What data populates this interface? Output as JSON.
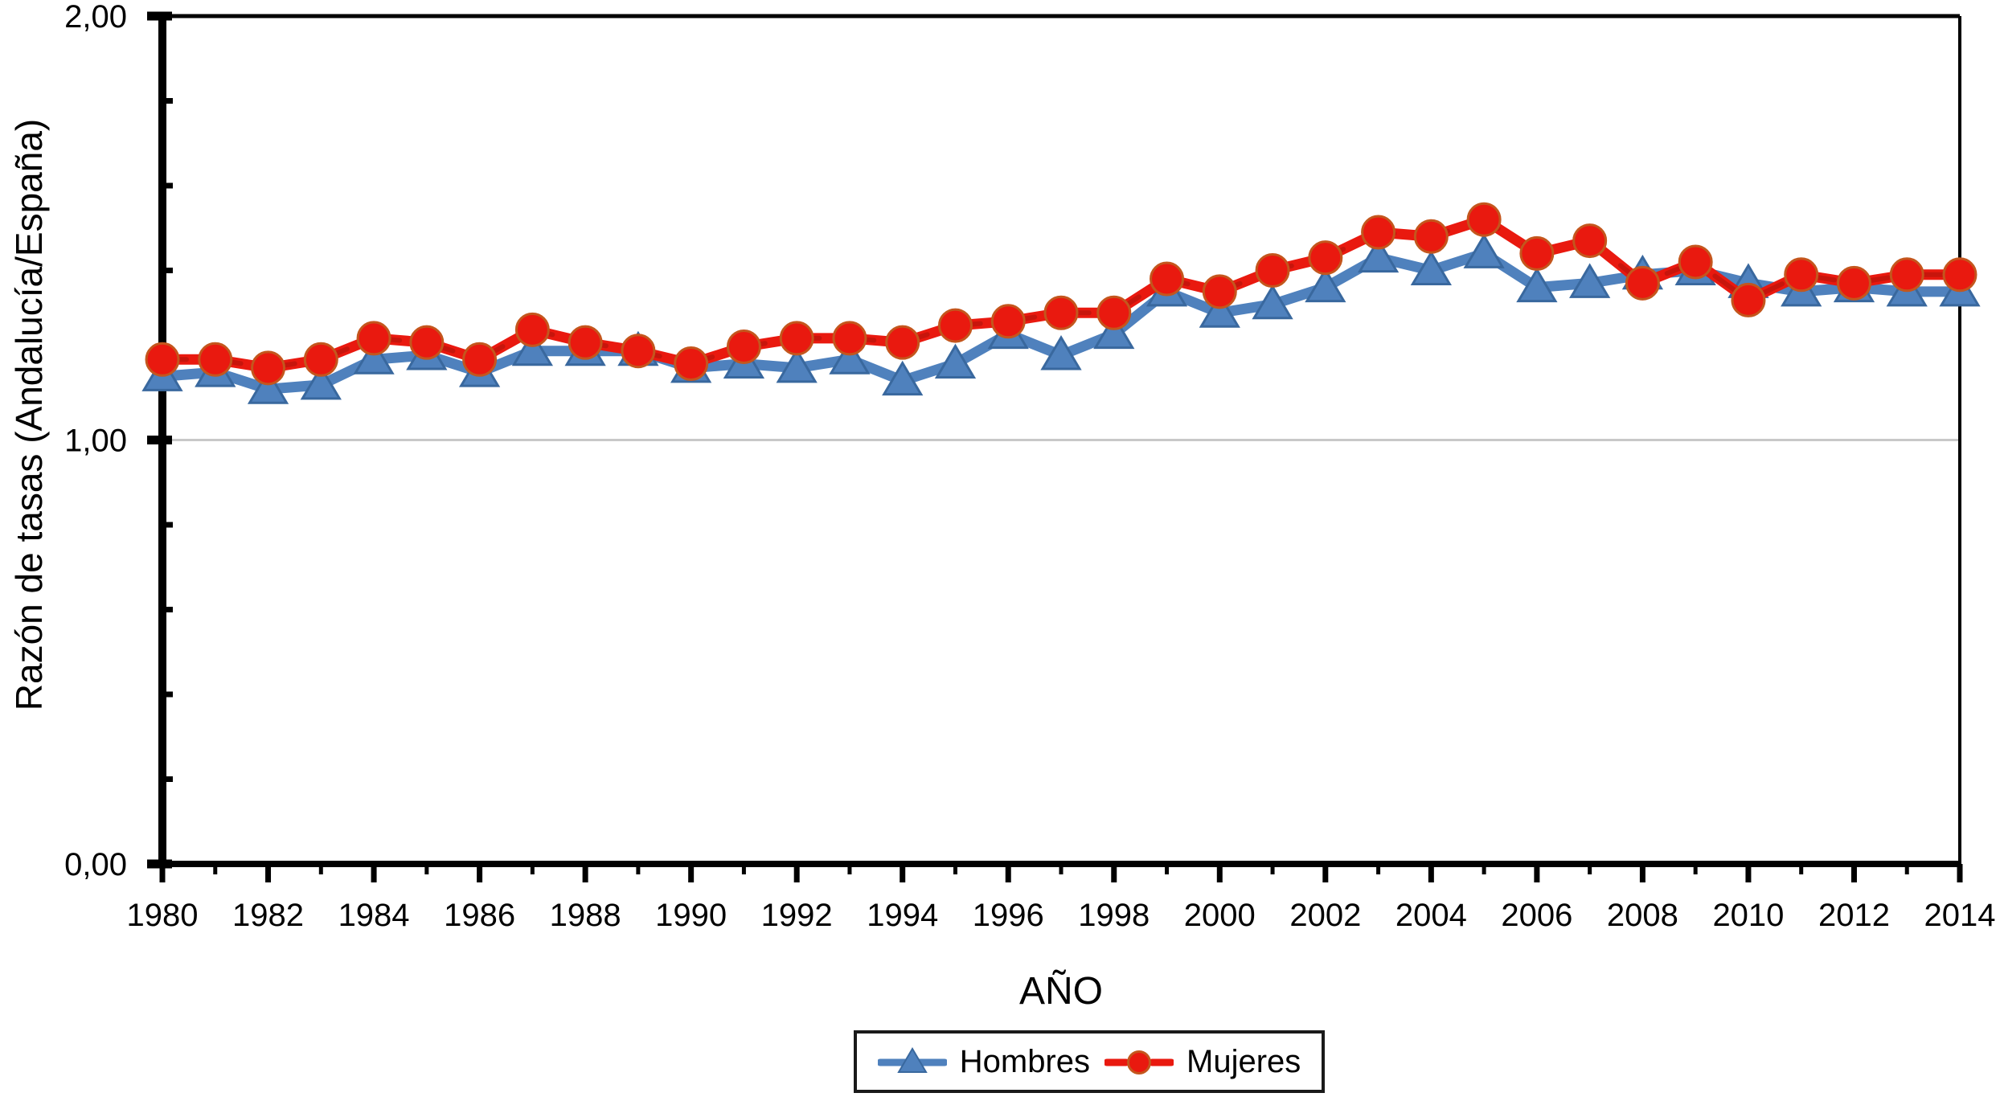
{
  "figure": {
    "y_axis_title": "Razón de tasas (Andalucía/España)",
    "x_axis_title": "AÑO",
    "background_color": "#ffffff",
    "axis_color": "#000000",
    "gridline_color": "#c8c8c8"
  },
  "legend": {
    "position": "bottom-center",
    "items": [
      {
        "label": "Hombres",
        "marker": "triangle",
        "color": "#4f81bd"
      },
      {
        "label": "Mujeres",
        "marker": "circle",
        "color": "#e9190f"
      }
    ]
  },
  "chart_data": {
    "type": "line",
    "xlabel": "AÑO",
    "ylabel": "Razón de tasas (Andalucía/España)",
    "ylim": [
      0,
      2
    ],
    "y_major_ticks": [
      0,
      1,
      2
    ],
    "y_tick_labels": [
      "0,00",
      "1,00",
      "2,00"
    ],
    "y_minor_step": 0.2,
    "gridlines": {
      "y": [
        1.0
      ]
    },
    "x_labeled_ticks": [
      1980,
      1982,
      1984,
      1986,
      1988,
      1990,
      1992,
      1994,
      1996,
      1998,
      2000,
      2002,
      2004,
      2006,
      2008,
      2010,
      2012,
      2014
    ],
    "x": [
      1980,
      1981,
      1982,
      1983,
      1984,
      1985,
      1986,
      1987,
      1988,
      1989,
      1990,
      1991,
      1992,
      1993,
      1994,
      1995,
      1996,
      1997,
      1998,
      1999,
      2000,
      2001,
      2002,
      2003,
      2004,
      2005,
      2006,
      2007,
      2008,
      2009,
      2010,
      2011,
      2012,
      2013,
      2014
    ],
    "series": [
      {
        "name": "Hombres",
        "marker": "triangle",
        "color": "#4f81bd",
        "marker_border": "#39689e",
        "line_style": "solid",
        "values": [
          1.15,
          1.16,
          1.12,
          1.13,
          1.19,
          1.2,
          1.16,
          1.21,
          1.21,
          1.21,
          1.17,
          1.18,
          1.17,
          1.19,
          1.14,
          1.18,
          1.25,
          1.2,
          1.25,
          1.35,
          1.3,
          1.32,
          1.36,
          1.43,
          1.4,
          1.44,
          1.36,
          1.37,
          1.39,
          1.4,
          1.37,
          1.35,
          1.36,
          1.35,
          1.35
        ]
      },
      {
        "name": "Mujeres",
        "marker": "circle",
        "color": "#e9190f",
        "marker_border": "#c4561d",
        "line_style": "dashed",
        "dash_color": "#b1130a",
        "values": [
          1.19,
          1.19,
          1.17,
          1.19,
          1.24,
          1.23,
          1.19,
          1.26,
          1.23,
          1.21,
          1.18,
          1.22,
          1.24,
          1.24,
          1.23,
          1.27,
          1.28,
          1.3,
          1.3,
          1.38,
          1.35,
          1.4,
          1.43,
          1.49,
          1.48,
          1.52,
          1.44,
          1.47,
          1.37,
          1.42,
          1.33,
          1.39,
          1.37,
          1.39,
          1.39
        ]
      }
    ]
  }
}
